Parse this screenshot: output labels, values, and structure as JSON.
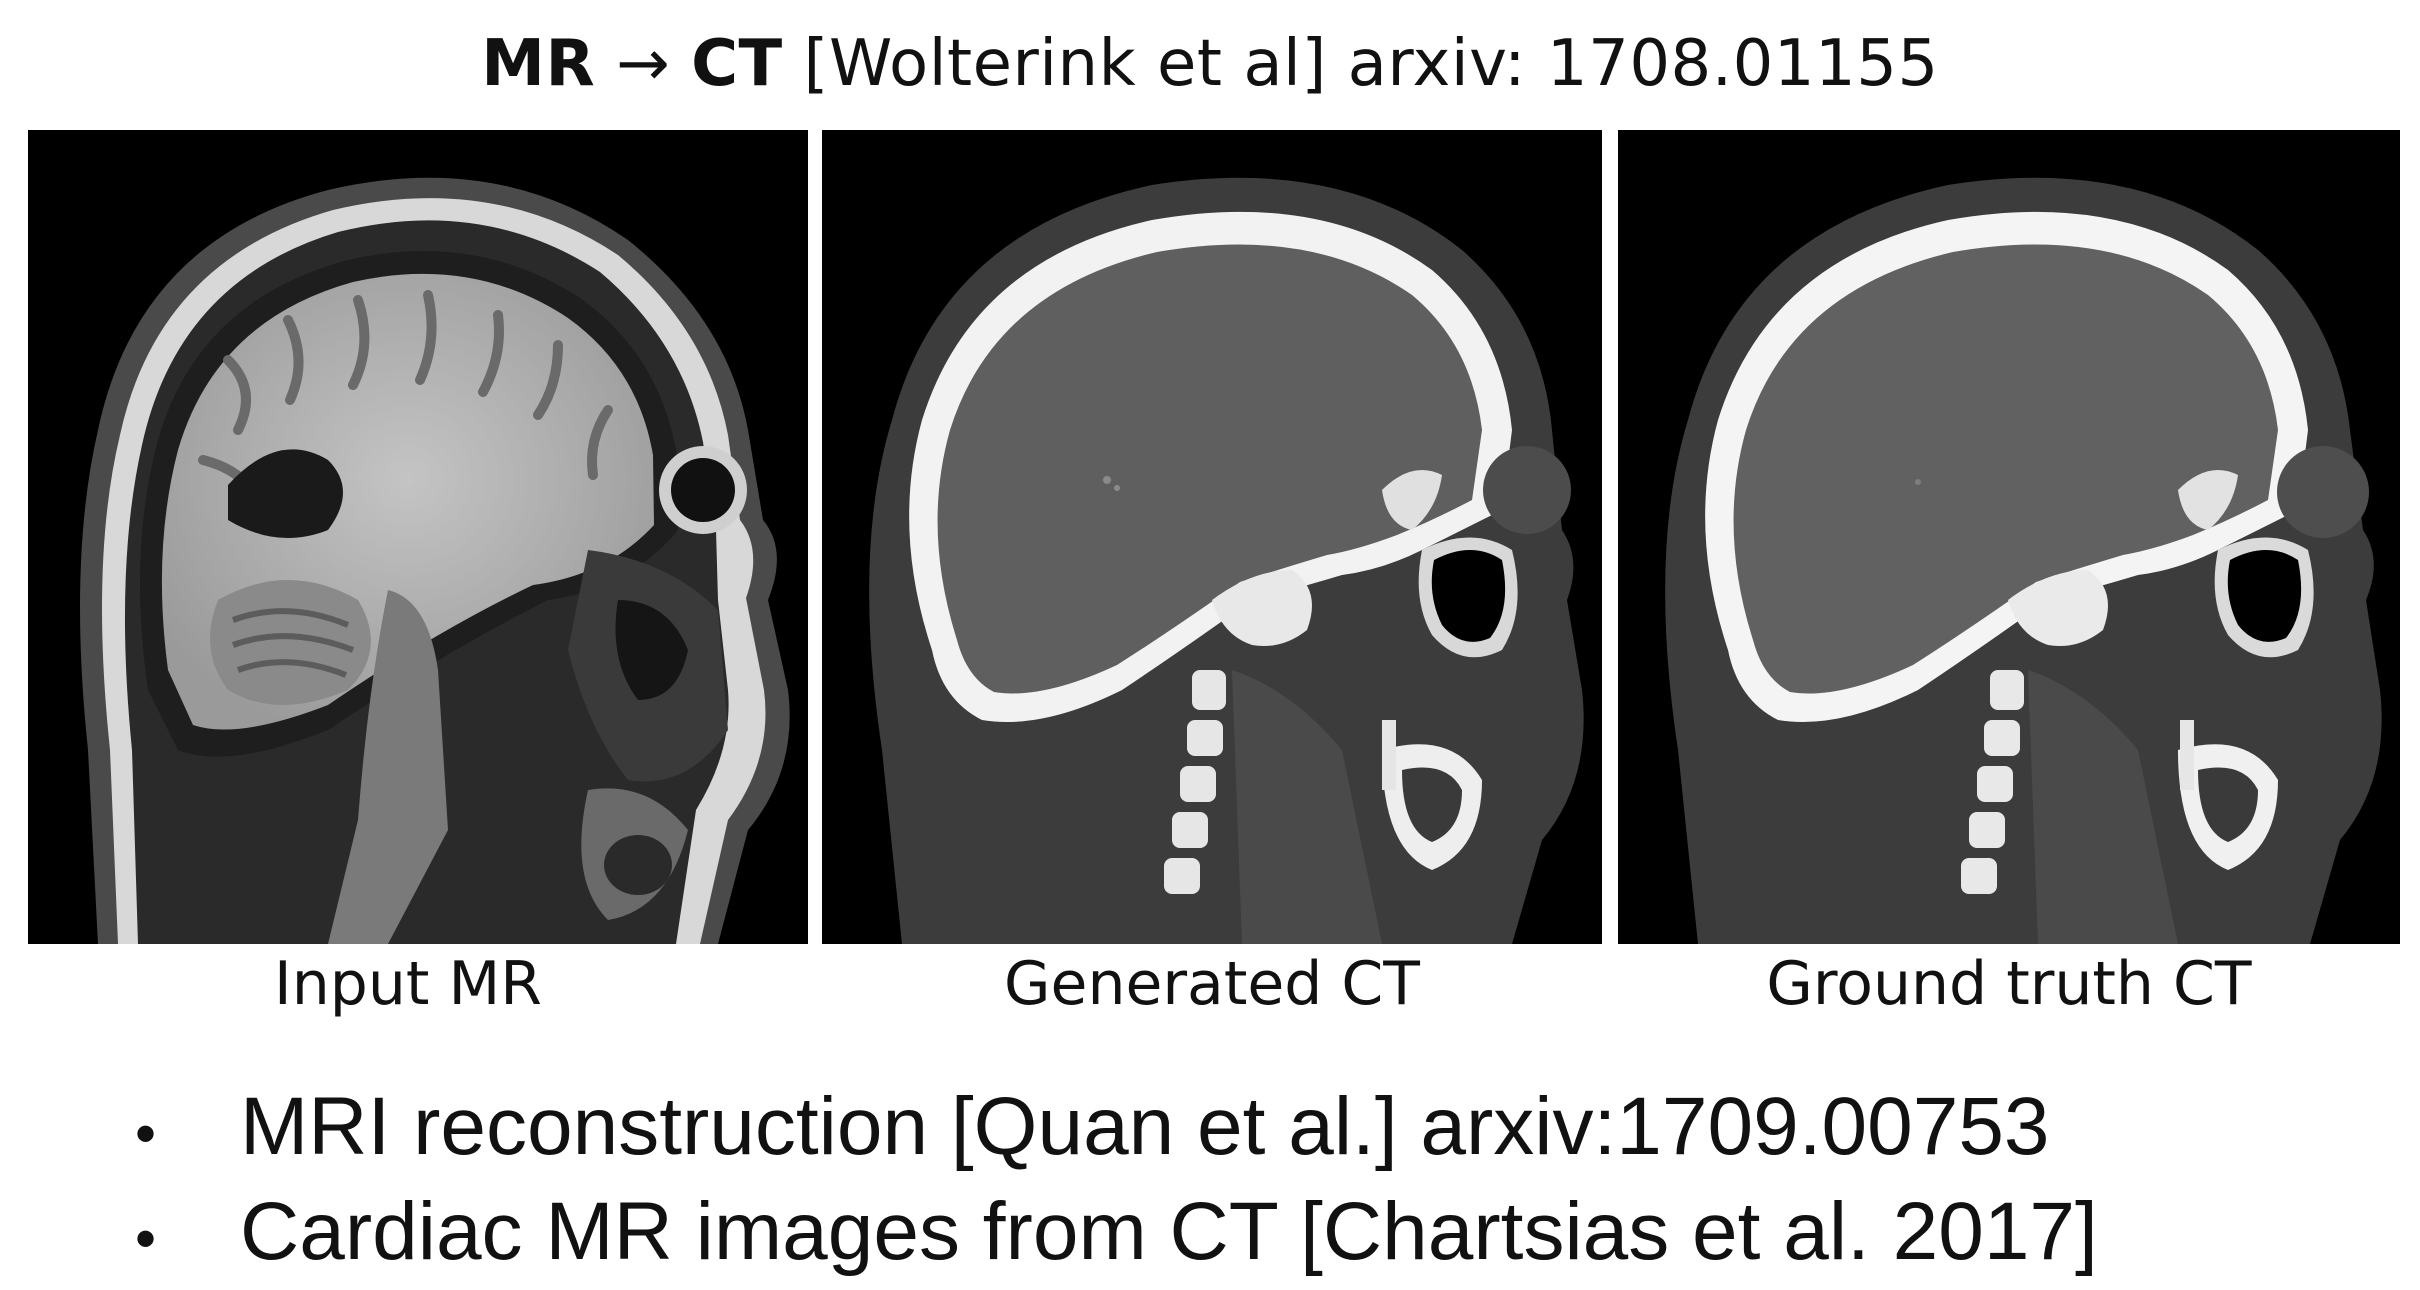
{
  "title": {
    "mr": "MR",
    "arrow": "→",
    "ct": "CT",
    "rest": "[Wolterink et al] arxiv: 1708.01155"
  },
  "figure": {
    "panels": [
      {
        "caption": "Input MR"
      },
      {
        "caption": "Generated CT"
      },
      {
        "caption": "Ground truth CT"
      }
    ]
  },
  "bullets": [
    {
      "marker": "•",
      "text": "MRI reconstruction [Quan et al.] arxiv:1709.00753"
    },
    {
      "marker": "•",
      "text": "Cardiac MR images from CT [Chartsias et al. 2017]"
    }
  ],
  "colors": {
    "background": "#ffffff",
    "panel": "#000000",
    "text": "#111111"
  }
}
